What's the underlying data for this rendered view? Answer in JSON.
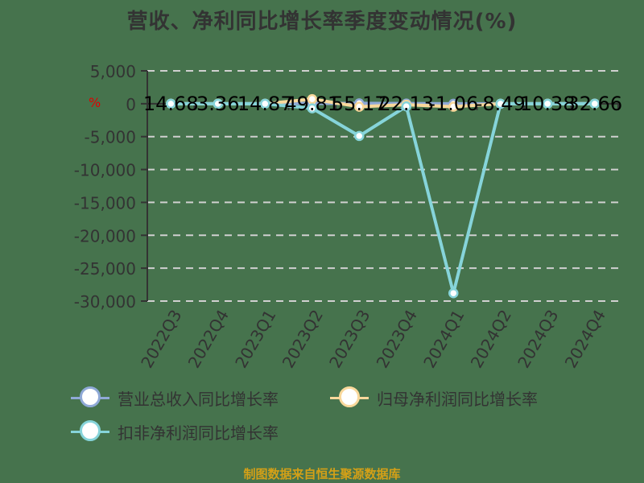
{
  "title": "营收、净利同比增长率季度变动情况(%)",
  "unit_icon": "%",
  "footer": "制图数据来自恒生聚源数据库",
  "legend": [
    {
      "label": "营业总收入同比增长率",
      "color": "#8fa9d6"
    },
    {
      "label": "归母净利润同比增长率",
      "color": "#f9d89b"
    },
    {
      "label": "扣非净利润同比增长率",
      "color": "#86d4da"
    }
  ],
  "chart_data": {
    "type": "line",
    "title": "营收、净利同比增长率季度变动情况(%)",
    "xlabel": "",
    "ylabel": "%",
    "categories": [
      "2022Q3",
      "2022Q4",
      "2023Q1",
      "2023Q2",
      "2023Q3",
      "2023Q4",
      "2024Q1",
      "2024Q2",
      "2024Q3",
      "2024Q4"
    ],
    "ylim": [
      -30000,
      5000
    ],
    "yticks": [
      5000,
      0,
      -5000,
      -10000,
      -15000,
      -20000,
      -25000,
      -30000
    ],
    "ytick_labels": [
      "5,000",
      "0",
      "-5,000",
      "-10,000",
      "-15,000",
      "-20,000",
      "-25,000",
      "-30,000"
    ],
    "grid": "horizontal dashed",
    "legend_position": "bottom",
    "series": [
      {
        "name": "营业总收入同比增长率",
        "color": "#8fa9d6",
        "values": [
          14.68,
          3.36,
          14.87,
          49.81,
          55.17,
          22.13,
          -1.06,
          -8.49,
          10.38,
          32.66
        ],
        "labels": [
          "14.68",
          "3.36",
          "14.87",
          "49.81",
          "55.17",
          "22.13",
          "-1.06",
          "-8.49",
          "10.38",
          "32.66"
        ]
      },
      {
        "name": "归母净利润同比增长率",
        "color": "#f9d89b",
        "values": [
          0,
          0,
          0,
          700,
          -450,
          -150,
          -450,
          0,
          0,
          0
        ]
      },
      {
        "name": "扣非净利润同比增长率",
        "color": "#86d4da",
        "values": [
          0,
          0,
          0,
          -700,
          -4900,
          -400,
          -28800,
          0,
          0,
          0
        ]
      }
    ]
  }
}
